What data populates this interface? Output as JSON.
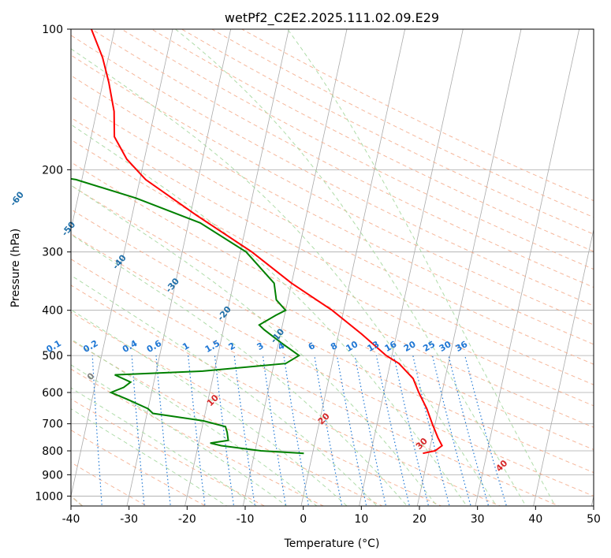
{
  "chart_data": {
    "type": "line",
    "title": "wetPf2_C2E2.2025.111.02.09.E29",
    "xlabel": "Temperature (°C)",
    "ylabel": "Pressure (hPa)",
    "xlim": [
      -40,
      50
    ],
    "ylim": [
      1050,
      100
    ],
    "y_scale": "log",
    "x_ticks": [
      -40,
      -30,
      -20,
      -10,
      0,
      10,
      20,
      30,
      40,
      50
    ],
    "y_ticks": [
      1000,
      900,
      800,
      700,
      600,
      500,
      400,
      300,
      200,
      100
    ],
    "grid": true,
    "skew": 35,
    "colors": {
      "temperature": "#ff0000",
      "dewpoint": "#008000",
      "isotherm": "#aaaaaa",
      "dry_adiabat": "#f4a582",
      "moist_adiabat": "#a6d8a0",
      "mixing_ratio": "#1f77d4",
      "dry_adiabat_label": "#1f6fa8",
      "moist_adiabat_label": "#d62728",
      "moist_adiabat_label_zero": "#808080",
      "lcl_curve": "#d9c4a8"
    },
    "series": [
      {
        "role": "temperature",
        "points": [
          {
            "p": 810,
            "t": 19.0
          },
          {
            "p": 800,
            "t": 21.0
          },
          {
            "p": 780,
            "t": 22.0
          },
          {
            "p": 750,
            "t": 21.0
          },
          {
            "p": 700,
            "t": 19.5
          },
          {
            "p": 650,
            "t": 18.0
          },
          {
            "p": 600,
            "t": 16.0
          },
          {
            "p": 560,
            "t": 14.5
          },
          {
            "p": 520,
            "t": 11.5
          },
          {
            "p": 500,
            "t": 9.0
          },
          {
            "p": 450,
            "t": 4.0
          },
          {
            "p": 400,
            "t": -2.0
          },
          {
            "p": 350,
            "t": -10.0
          },
          {
            "p": 300,
            "t": -18.0
          },
          {
            "p": 250,
            "t": -29.0
          },
          {
            "p": 210,
            "t": -39.0
          },
          {
            "p": 190,
            "t": -43.0
          },
          {
            "p": 170,
            "t": -46.0
          },
          {
            "p": 150,
            "t": -47.0
          },
          {
            "p": 130,
            "t": -49.0
          },
          {
            "p": 115,
            "t": -51.0
          },
          {
            "p": 100,
            "t": -54.0
          }
        ]
      },
      {
        "role": "dewpoint",
        "points": [
          {
            "p": 810,
            "t": -1.5
          },
          {
            "p": 800,
            "t": -9.0
          },
          {
            "p": 780,
            "t": -16.0
          },
          {
            "p": 770,
            "t": -18.0
          },
          {
            "p": 760,
            "t": -15.0
          },
          {
            "p": 730,
            "t": -15.5
          },
          {
            "p": 710,
            "t": -16.0
          },
          {
            "p": 690,
            "t": -20.0
          },
          {
            "p": 665,
            "t": -29.0
          },
          {
            "p": 650,
            "t": -30.0
          },
          {
            "p": 620,
            "t": -34.0
          },
          {
            "p": 600,
            "t": -37.0
          },
          {
            "p": 585,
            "t": -35.0
          },
          {
            "p": 570,
            "t": -34.0
          },
          {
            "p": 550,
            "t": -37.0
          },
          {
            "p": 540,
            "t": -22.0
          },
          {
            "p": 520,
            "t": -8.0
          },
          {
            "p": 500,
            "t": -6.0
          },
          {
            "p": 470,
            "t": -9.5
          },
          {
            "p": 440,
            "t": -13.0
          },
          {
            "p": 430,
            "t": -14.0
          },
          {
            "p": 410,
            "t": -11.5
          },
          {
            "p": 400,
            "t": -10.0
          },
          {
            "p": 380,
            "t": -12.0
          },
          {
            "p": 350,
            "t": -13.0
          },
          {
            "p": 300,
            "t": -19.0
          },
          {
            "p": 260,
            "t": -28.0
          },
          {
            "p": 230,
            "t": -40.0
          },
          {
            "p": 210,
            "t": -51.0
          },
          {
            "p": 200,
            "t": -62.0
          },
          {
            "p": 190,
            "t": -64.0
          },
          {
            "p": 185,
            "t": -62.0
          },
          {
            "p": 170,
            "t": -60.0
          },
          {
            "p": 155,
            "t": -62.0
          },
          {
            "p": 135,
            "t": -64.0
          },
          {
            "p": 125,
            "t": -66.0
          },
          {
            "p": 115,
            "t": -67.0
          },
          {
            "p": 105,
            "t": -67.0
          },
          {
            "p": 100,
            "t": -66.0
          }
        ]
      }
    ],
    "dry_adiabat_labels": [
      "-100",
      "-90",
      "-80",
      "-70",
      "-60",
      "-50",
      "-40",
      "-30",
      "-20",
      "-10"
    ],
    "mixing_ratio_labels": [
      "0.1",
      "0.2",
      "0.4",
      "0.6",
      "1",
      "1.5",
      "2",
      "3",
      "4",
      "6",
      "8",
      "10",
      "13",
      "16",
      "20",
      "25",
      "30",
      "36"
    ],
    "moist_adiabat_labels": [
      "0",
      "10",
      "20",
      "30",
      "40"
    ]
  }
}
